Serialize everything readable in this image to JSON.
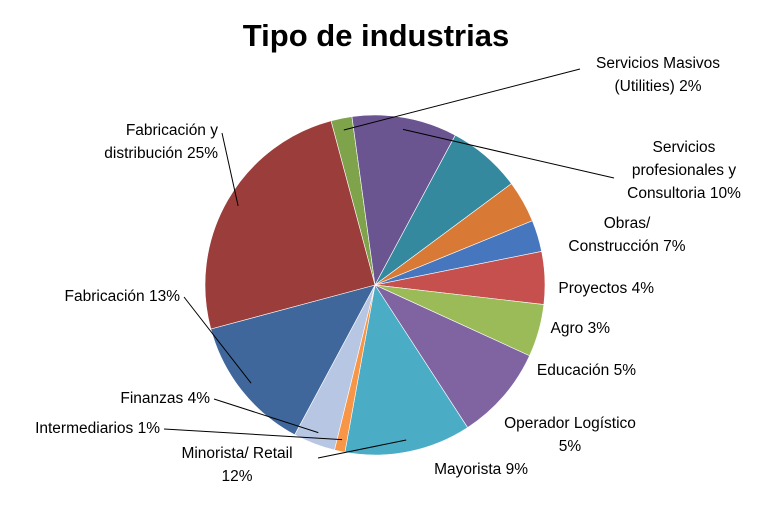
{
  "chart_data": {
    "type": "pie",
    "title": "Tipo de industrias",
    "slices": [
      {
        "label": [
          "Servicios Masivos",
          "(Utilities) 2%"
        ],
        "value": 2,
        "color": "#7fa34a"
      },
      {
        "label": [
          "Servicios",
          "profesionales y",
          "Consultoria 10%"
        ],
        "value": 10,
        "color": "#6a5590"
      },
      {
        "label": [
          "Obras/",
          "Construcción 7%"
        ],
        "value": 7,
        "color": "#35899e"
      },
      {
        "label": [
          "Proyectos 4%"
        ],
        "value": 4,
        "color": "#d87a35"
      },
      {
        "label": [
          "Agro 3%"
        ],
        "value": 3,
        "color": "#4677be"
      },
      {
        "label": [
          "Educación 5%"
        ],
        "value": 5,
        "color": "#c5504d"
      },
      {
        "label": [
          "Operador Logístico",
          "5%"
        ],
        "value": 5,
        "color": "#9bbb59"
      },
      {
        "label": [
          "Mayorista 9%"
        ],
        "value": 9,
        "color": "#8064a2"
      },
      {
        "label": [
          "Minorista/ Retail",
          "12%"
        ],
        "value": 12,
        "color": "#4bacc6"
      },
      {
        "label": [
          "Intermediarios 1%"
        ],
        "value": 1,
        "color": "#f79646"
      },
      {
        "label": [
          "Finanzas 4%"
        ],
        "value": 4,
        "color": "#b7c7e3"
      },
      {
        "label": [
          "Fabricación 13%"
        ],
        "value": 13,
        "color": "#3f679b"
      },
      {
        "label": [
          "Fabricación y",
          "distribución 25%"
        ],
        "value": 25,
        "color": "#9b3d3a"
      }
    ]
  }
}
